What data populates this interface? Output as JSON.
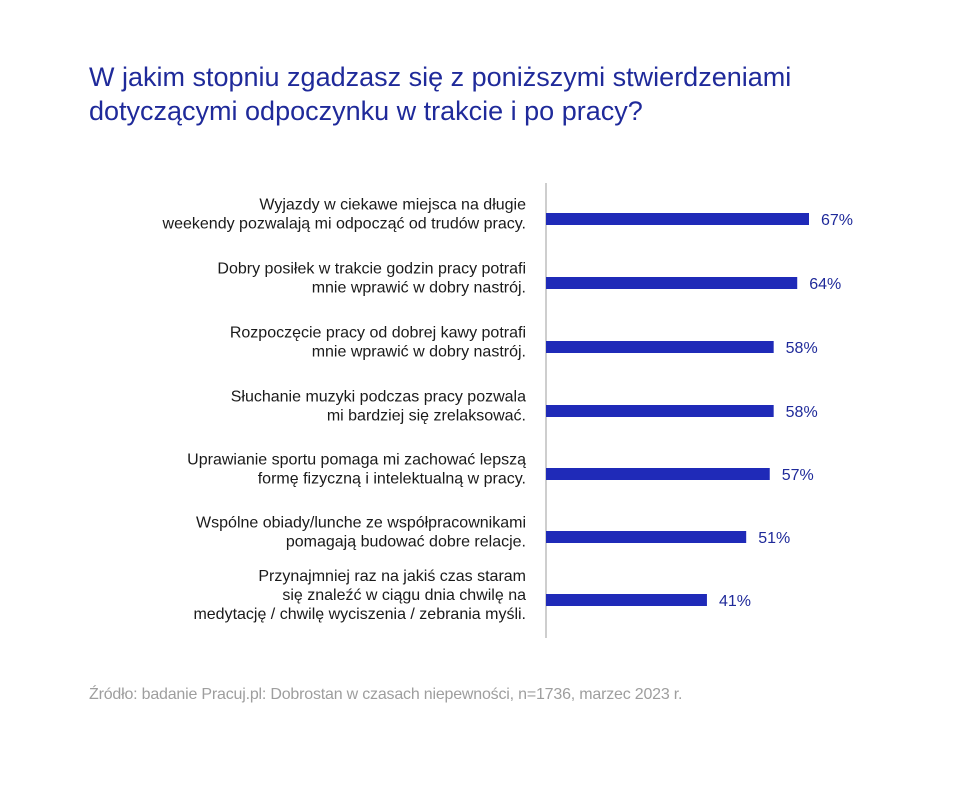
{
  "title_lines": [
    "W jakim stopniu zgadzasz się z poniższymi stwierdzeniami",
    "dotyczącymi odpoczynku w trakcie i po pracy?"
  ],
  "chart_data": {
    "type": "bar",
    "orientation": "horizontal",
    "categories": [
      [
        "Wyjazdy w ciekawe miejsca na długie",
        "weekendy pozwalają mi odpocząć od trudów pracy."
      ],
      [
        "Dobry posiłek w trakcie godzin pracy potrafi",
        "mnie wprawić w dobry nastrój."
      ],
      [
        "Rozpoczęcie pracy od dobrej kawy potrafi",
        "mnie wprawić w dobry nastrój."
      ],
      [
        "Słuchanie muzyki podczas pracy pozwala",
        "mi bardziej się zrelaksować."
      ],
      [
        "Uprawianie sportu pomaga mi zachować lepszą",
        "formę fizyczną i intelektualną w pracy."
      ],
      [
        "Wspólne obiady/lunche ze współpracownikami",
        "pomagają budować dobre relacje."
      ],
      [
        "Przynajmniej raz na jakiś czas staram",
        "się znaleźć w ciągu dnia chwilę na",
        "medytację / chwilę wyciszenia / zebrania myśli."
      ]
    ],
    "values": [
      67,
      64,
      58,
      58,
      57,
      51,
      41
    ],
    "value_labels": [
      "67%",
      "64%",
      "58%",
      "58%",
      "57%",
      "51%",
      "41%"
    ],
    "xlim": [
      0,
      100
    ],
    "grid": false,
    "bar_color": "#1f2ab8",
    "label_color": "#1f2a9a"
  },
  "source": "Źródło: badanie Pracuj.pl: Dobrostan w czasach niepewności, n=1736, marzec 2023 r."
}
